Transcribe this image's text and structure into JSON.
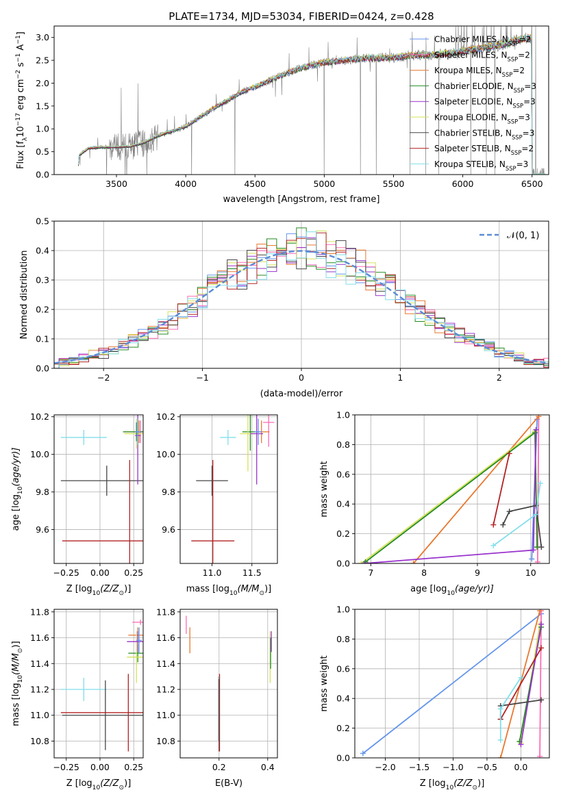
{
  "figure": {
    "title": "PLATE=1734, MJD=53034, FIBERID=0424, z=0.428"
  },
  "colors": {
    "Chabrier MILES": "#6495ed",
    "Salpeter MILES": "#ff69b4",
    "Kroupa MILES": "#daa520",
    "Chabrier ELODIE": "#228b22",
    "Salpeter ELODIE": "#9932cc",
    "Kroupa ELODIE": "#d4e157",
    "Chabrier STELIB": "#444444",
    "Salpeter STELIB": "#b22222",
    "Kroupa STELIB": "#80deea",
    "orange": "#e8782f",
    "data": "#808080"
  },
  "chart_data": [
    {
      "id": "spectrum",
      "type": "line",
      "xlabel": "wavelength [Angstrom, rest frame]",
      "ylabel": "Flux [f",
      "ylabel_sub": "λ",
      "ylabel_rest": "10",
      "ylabel_exp": "−17",
      "ylabel_rest2": " erg cm",
      "ylabel_exp2": "−2",
      "ylabel_rest3": " s",
      "ylabel_exp3": "−1",
      "ylabel_rest4": " A",
      "ylabel_exp4": "−1",
      "ylabel_rest5": "]",
      "xlim": [
        3050,
        6620
      ],
      "ylim": [
        0,
        3.25
      ],
      "xticks": [
        "3500",
        "4000",
        "4500",
        "5000",
        "5500",
        "6000",
        "6500"
      ],
      "xtick_values": [
        3500,
        4000,
        4500,
        5000,
        5500,
        6000,
        6500
      ],
      "yticks": [
        "0.0",
        "0.5",
        "1.0",
        "1.5",
        "2.0",
        "2.5",
        "3.0"
      ],
      "ytick_values": [
        0,
        0.5,
        1.0,
        1.5,
        2.0,
        2.5,
        3.0
      ],
      "grid": false,
      "legend_position": "upper-right",
      "model_continuum": {
        "x": [
          3220,
          3230,
          3300,
          3400,
          3500,
          3600,
          3700,
          3800,
          3900,
          4000,
          4100,
          4200,
          4300,
          4400,
          4500,
          4600,
          4700,
          4800,
          4900,
          5000,
          5100,
          5200,
          5300,
          5400,
          5500,
          5600,
          5700,
          5800,
          5900,
          6000,
          6100,
          6200,
          6300,
          6400,
          6500
        ],
        "y": [
          0.0,
          0.42,
          0.58,
          0.6,
          0.6,
          0.62,
          0.7,
          0.85,
          0.95,
          1.05,
          1.25,
          1.45,
          1.62,
          1.8,
          1.92,
          2.05,
          2.18,
          2.3,
          2.38,
          2.45,
          2.48,
          2.52,
          2.55,
          2.55,
          2.55,
          2.6,
          2.62,
          2.62,
          2.65,
          2.7,
          2.75,
          2.8,
          2.85,
          2.95,
          3.0
        ]
      },
      "legend": [
        {
          "label": "Chabrier MILES, N",
          "sub": "SSP",
          "tail": "=2"
        },
        {
          "label": "Salpeter MILES, N",
          "sub": "SSP",
          "tail": "=2"
        },
        {
          "label": "Kroupa MILES, N",
          "sub": "SSP",
          "tail": "=2"
        },
        {
          "label": "Chabrier ELODIE, N",
          "sub": "SSP",
          "tail": "=3"
        },
        {
          "label": "Salpeter ELODIE, N",
          "sub": "SSP",
          "tail": "=3"
        },
        {
          "label": "Kroupa ELODIE, N",
          "sub": "SSP",
          "tail": "=3"
        },
        {
          "label": "Chabrier STELIB, N",
          "sub": "SSP",
          "tail": "=3"
        },
        {
          "label": "Salpeter STELIB, N",
          "sub": "SSP",
          "tail": "=2"
        },
        {
          "label": "Kroupa STELIB, N",
          "sub": "SSP",
          "tail": "=3"
        }
      ]
    },
    {
      "id": "residuals",
      "type": "histogram",
      "xlabel": "(data-model)/error",
      "ylabel": "Normed distribution",
      "xlim": [
        -2.5,
        2.5
      ],
      "ylim": [
        0,
        0.5
      ],
      "xticks": [
        "−2",
        "−1",
        "0",
        "1",
        "2"
      ],
      "xtick_values": [
        -2,
        -1,
        0,
        1,
        2
      ],
      "yticks": [
        "0.0",
        "0.1",
        "0.2",
        "0.3",
        "0.4",
        "0.5"
      ],
      "ytick_values": [
        0,
        0.1,
        0.2,
        0.3,
        0.4,
        0.5
      ],
      "grid": true,
      "legend_position": "upper-right",
      "legend_label": "𝒩(0, 1)",
      "bin_width": 0.1
    },
    {
      "id": "age-vs-Z",
      "type": "errorbar",
      "xlabel": "Z [log",
      "xlabel_sub": "10",
      "xlabel_rest": "(Z/Z",
      "xlabel_sub2": "⊙",
      "xlabel_rest2": ")]",
      "ylabel": "age  [log",
      "ylabel_sub": "10",
      "ylabel_rest": "(age/yr)]",
      "xlim": [
        -0.34,
        0.32
      ],
      "ylim": [
        9.42,
        10.21
      ],
      "xticks": [
        "−0.25",
        "0.00",
        "0.25"
      ],
      "xtick_values": [
        -0.25,
        0,
        0.25
      ],
      "yticks": [
        "9.6",
        "9.8",
        "10.0",
        "10.2"
      ],
      "ytick_values": [
        9.6,
        9.8,
        10.0,
        10.2
      ],
      "grid": true,
      "points": [
        {
          "model": "Kroupa STELIB",
          "x": -0.12,
          "xerr": 0.17,
          "y": 10.09,
          "yerr": 0.04
        },
        {
          "model": "Chabrier STELIB",
          "x": 0.05,
          "xerr": 0.34,
          "y": 9.86,
          "yerr": 0.08
        },
        {
          "model": "Salpeter STELIB",
          "x": 0.22,
          "xerr": 0.5,
          "y": 9.54,
          "yerr": 0.43
        },
        {
          "model": "orange",
          "x": 0.29,
          "xerr": 0.11,
          "y": 10.12,
          "yerr": 0.06
        },
        {
          "model": "Salpeter MILES",
          "x": 0.3,
          "xerr": 0.02,
          "y": 10.12,
          "yerr": 0.06
        },
        {
          "model": "Kroupa ELODIE",
          "x": 0.27,
          "xerr": 0.09,
          "y": 10.11,
          "yerr": 0.08
        },
        {
          "model": "Chabrier ELODIE",
          "x": 0.27,
          "xerr": 0.1,
          "y": 10.12,
          "yerr": 0.05
        },
        {
          "model": "Salpeter ELODIE",
          "x": 0.28,
          "xerr": 0.02,
          "y": 10.1,
          "yerr": 0.26
        },
        {
          "model": "Chabrier MILES",
          "x": 0.28,
          "xerr": 0.02,
          "y": 10.12,
          "yerr": 0.07
        }
      ]
    },
    {
      "id": "age-vs-mass",
      "type": "errorbar",
      "xlabel": "mass [log",
      "xlabel_sub": "10",
      "xlabel_rest": "(M/M",
      "xlabel_sub2": "⊙",
      "xlabel_rest2": ")]",
      "xlim": [
        10.6,
        11.82
      ],
      "ylim": [
        9.42,
        10.21
      ],
      "xticks": [
        "11.0",
        "11.5"
      ],
      "xtick_values": [
        11.0,
        11.5
      ],
      "yticks": [
        "9.6",
        "9.8",
        "10.0",
        "10.2"
      ],
      "ytick_values": [
        9.6,
        9.8,
        10.0,
        10.2
      ],
      "grid": true,
      "points": [
        {
          "model": "Kroupa STELIB",
          "x": 11.2,
          "xerr": 0.1,
          "y": 10.09,
          "yerr": 0.04
        },
        {
          "model": "Chabrier STELIB",
          "x": 11.0,
          "xerr": 0.2,
          "y": 9.86,
          "yerr": 0.08
        },
        {
          "model": "Salpeter STELIB",
          "x": 11.01,
          "xerr": 0.27,
          "y": 9.54,
          "yerr": 0.43
        },
        {
          "model": "Salpeter MILES",
          "x": 11.71,
          "xerr": 0.07,
          "y": 10.17,
          "yerr": 0.13
        },
        {
          "model": "orange",
          "x": 11.62,
          "xerr": 0.1,
          "y": 10.12,
          "yerr": 0.06
        },
        {
          "model": "Chabrier ELODIE",
          "x": 11.48,
          "xerr": 0.1,
          "y": 10.12,
          "yerr": 0.1
        },
        {
          "model": "Kroupa ELODIE",
          "x": 11.45,
          "xerr": 0.1,
          "y": 10.11,
          "yerr": 0.2
        },
        {
          "model": "Salpeter ELODIE",
          "x": 11.56,
          "xerr": 0.08,
          "y": 10.11,
          "yerr": 0.27
        },
        {
          "model": "Chabrier MILES",
          "x": 11.58,
          "xerr": 0.05,
          "y": 10.12,
          "yerr": 0.07
        }
      ]
    },
    {
      "id": "weight-vs-age",
      "type": "line",
      "xlabel": "age  [log",
      "xlabel_sub": "10",
      "xlabel_rest": "(age/yr)]",
      "ylabel": "mass weight",
      "xlim": [
        6.7,
        10.35
      ],
      "ylim": [
        0,
        1.0
      ],
      "xticks": [
        "7",
        "8",
        "9",
        "10"
      ],
      "xtick_values": [
        7,
        8,
        9,
        10
      ],
      "yticks": [
        "0.0",
        "0.2",
        "0.4",
        "0.6",
        "0.8",
        "1.0"
      ],
      "ytick_values": [
        0,
        0.2,
        0.4,
        0.6,
        0.8,
        1.0
      ],
      "grid": true,
      "series": [
        {
          "model": "Chabrier MILES",
          "x": [
            10.02,
            10.12
          ],
          "y": [
            0.03,
            0.97
          ]
        },
        {
          "model": "Salpeter MILES",
          "x": [
            10.13,
            10.15
          ],
          "y": [
            0.01,
            0.99
          ]
        },
        {
          "model": "orange",
          "x": [
            7.8,
            10.15
          ],
          "y": [
            0.0,
            0.99
          ]
        },
        {
          "model": "Kroupa ELODIE",
          "x": [
            6.82,
            10.08,
            10.12
          ],
          "y": [
            0.0,
            0.89,
            0.11
          ]
        },
        {
          "model": "Chabrier ELODIE",
          "x": [
            6.9,
            10.08,
            10.12
          ],
          "y": [
            0.01,
            0.88,
            0.11
          ]
        },
        {
          "model": "Salpeter ELODIE",
          "x": [
            6.88,
            10.05,
            10.1
          ],
          "y": [
            0.0,
            0.09,
            0.9
          ]
        },
        {
          "model": "Chabrier STELIB",
          "x": [
            9.48,
            9.6,
            10.1,
            10.2
          ],
          "y": [
            0.26,
            0.35,
            0.39,
            0.11
          ]
        },
        {
          "model": "Salpeter STELIB",
          "x": [
            9.3,
            9.6
          ],
          "y": [
            0.26,
            0.74
          ]
        },
        {
          "model": "Kroupa STELIB",
          "x": [
            9.3,
            10.1,
            10.18
          ],
          "y": [
            0.12,
            0.33,
            0.54
          ]
        }
      ]
    },
    {
      "id": "mass-vs-Z",
      "type": "errorbar",
      "xlabel": "Z [log",
      "xlabel_sub": "10",
      "xlabel_rest": "(Z/Z",
      "xlabel_sub2": "⊙",
      "xlabel_rest2": ")]",
      "ylabel": "mass [log",
      "ylabel_sub": "10",
      "ylabel_rest": "(M/M",
      "ylabel_sub2": "⊙",
      "ylabel_rest2": ")]",
      "xlim": [
        -0.34,
        0.32
      ],
      "ylim": [
        10.67,
        11.82
      ],
      "xticks": [
        "−0.25",
        "0.00",
        "0.25"
      ],
      "xtick_values": [
        -0.25,
        0,
        0.25
      ],
      "yticks": [
        "10.8",
        "11.0",
        "11.2",
        "11.4",
        "11.6",
        "11.8"
      ],
      "ytick_values": [
        10.8,
        11.0,
        11.2,
        11.4,
        11.6,
        11.8
      ],
      "grid": true,
      "points": [
        {
          "model": "Kroupa STELIB",
          "x": -0.12,
          "xerr": 0.17,
          "y": 11.2,
          "yerr": 0.09
        },
        {
          "model": "Chabrier STELIB",
          "x": 0.04,
          "xerr": 0.32,
          "y": 11.0,
          "yerr": 0.27
        },
        {
          "model": "Salpeter STELIB",
          "x": 0.21,
          "xerr": 0.5,
          "y": 11.02,
          "yerr": 0.3
        },
        {
          "model": "Salpeter MILES",
          "x": 0.3,
          "xerr": 0.06,
          "y": 11.72,
          "yerr": 0.02
        },
        {
          "model": "orange",
          "x": 0.28,
          "xerr": 0.07,
          "y": 11.62,
          "yerr": 0.06
        },
        {
          "model": "Chabrier ELODIE",
          "x": 0.28,
          "xerr": 0.07,
          "y": 11.48,
          "yerr": 0.07
        },
        {
          "model": "Kroupa ELODIE",
          "x": 0.27,
          "xerr": 0.07,
          "y": 11.45,
          "yerr": 0.2
        },
        {
          "model": "Salpeter ELODIE",
          "x": 0.28,
          "xerr": 0.08,
          "y": 11.57,
          "yerr": 0.08
        },
        {
          "model": "Chabrier MILES",
          "x": 0.29,
          "xerr": 0.02,
          "y": 11.58,
          "yerr": 0.1
        }
      ]
    },
    {
      "id": "mass-vs-ebv",
      "type": "errorbar",
      "xlabel": "E(B-V)",
      "xlim": [
        0.04,
        0.44
      ],
      "ylim": [
        10.67,
        11.82
      ],
      "xticks": [
        "0.2",
        "0.4"
      ],
      "xtick_values": [
        0.2,
        0.4
      ],
      "yticks": [
        "10.8",
        "11.0",
        "11.2",
        "11.4",
        "11.6",
        "11.8"
      ],
      "ytick_values": [
        10.8,
        11.0,
        11.2,
        11.4,
        11.6,
        11.8
      ],
      "grid": true,
      "points": [
        {
          "model": "Salpeter MILES",
          "x": 0.065,
          "xerr": 0.0,
          "y": 11.7,
          "yerr": 0.07
        },
        {
          "model": "orange",
          "x": 0.08,
          "xerr": 0.0,
          "y": 11.58,
          "yerr": 0.1
        },
        {
          "model": "Kroupa STELIB",
          "x": 0.197,
          "xerr": 0.0,
          "y": 11.05,
          "yerr": 0.25
        },
        {
          "model": "Chabrier STELIB",
          "x": 0.2,
          "xerr": 0.0,
          "y": 11.0,
          "yerr": 0.28
        },
        {
          "model": "Salpeter STELIB",
          "x": 0.202,
          "xerr": 0.0,
          "y": 11.02,
          "yerr": 0.3
        },
        {
          "model": "Kroupa ELODIE",
          "x": 0.41,
          "xerr": 0.0,
          "y": 11.45,
          "yerr": 0.2
        },
        {
          "model": "Chabrier ELODIE",
          "x": 0.412,
          "xerr": 0.0,
          "y": 11.48,
          "yerr": 0.12
        },
        {
          "model": "Salpeter ELODIE",
          "x": 0.415,
          "xerr": 0.0,
          "y": 11.57,
          "yerr": 0.08
        }
      ]
    },
    {
      "id": "weight-vs-Z",
      "type": "line",
      "xlabel": "Z [log",
      "xlabel_sub": "10",
      "xlabel_rest": "(Z/Z",
      "xlabel_sub2": "⊙",
      "xlabel_rest2": ")]",
      "ylabel": "mass weight",
      "xlim": [
        -2.45,
        0.42
      ],
      "ylim": [
        0,
        1.0
      ],
      "xticks": [
        "−2.0",
        "−1.5",
        "−1.0",
        "−0.5",
        "0.0"
      ],
      "xtick_values": [
        -2.0,
        -1.5,
        -1.0,
        -0.5,
        0.0
      ],
      "yticks": [
        "0.0",
        "0.2",
        "0.4",
        "0.6",
        "0.8",
        "1.0"
      ],
      "ytick_values": [
        0,
        0.2,
        0.4,
        0.6,
        0.8,
        1.0
      ],
      "grid": true,
      "series": [
        {
          "model": "Chabrier MILES",
          "x": [
            -2.33,
            0.3
          ],
          "y": [
            0.03,
            0.97
          ]
        },
        {
          "model": "Salpeter MILES",
          "x": [
            0.28,
            0.3
          ],
          "y": [
            0.01,
            0.99
          ]
        },
        {
          "model": "orange",
          "x": [
            -0.3,
            0.28
          ],
          "y": [
            0.0,
            0.99
          ]
        },
        {
          "model": "Kroupa ELODIE",
          "x": [
            0.0,
            0.28
          ],
          "y": [
            0.1,
            0.9
          ]
        },
        {
          "model": "Chabrier ELODIE",
          "x": [
            -0.02,
            0.3
          ],
          "y": [
            0.11,
            0.88
          ]
        },
        {
          "model": "Salpeter ELODIE",
          "x": [
            0.0,
            0.3
          ],
          "y": [
            0.09,
            0.9
          ]
        },
        {
          "model": "Chabrier STELIB",
          "x": [
            -0.3,
            -0.3,
            0.3
          ],
          "y": [
            0.26,
            0.35,
            0.39
          ]
        },
        {
          "model": "Salpeter STELIB",
          "x": [
            -0.3,
            0.3
          ],
          "y": [
            0.26,
            0.74
          ]
        },
        {
          "model": "Kroupa STELIB",
          "x": [
            -0.3,
            -0.3,
            0.0
          ],
          "y": [
            0.12,
            0.33,
            0.54
          ]
        }
      ]
    }
  ]
}
